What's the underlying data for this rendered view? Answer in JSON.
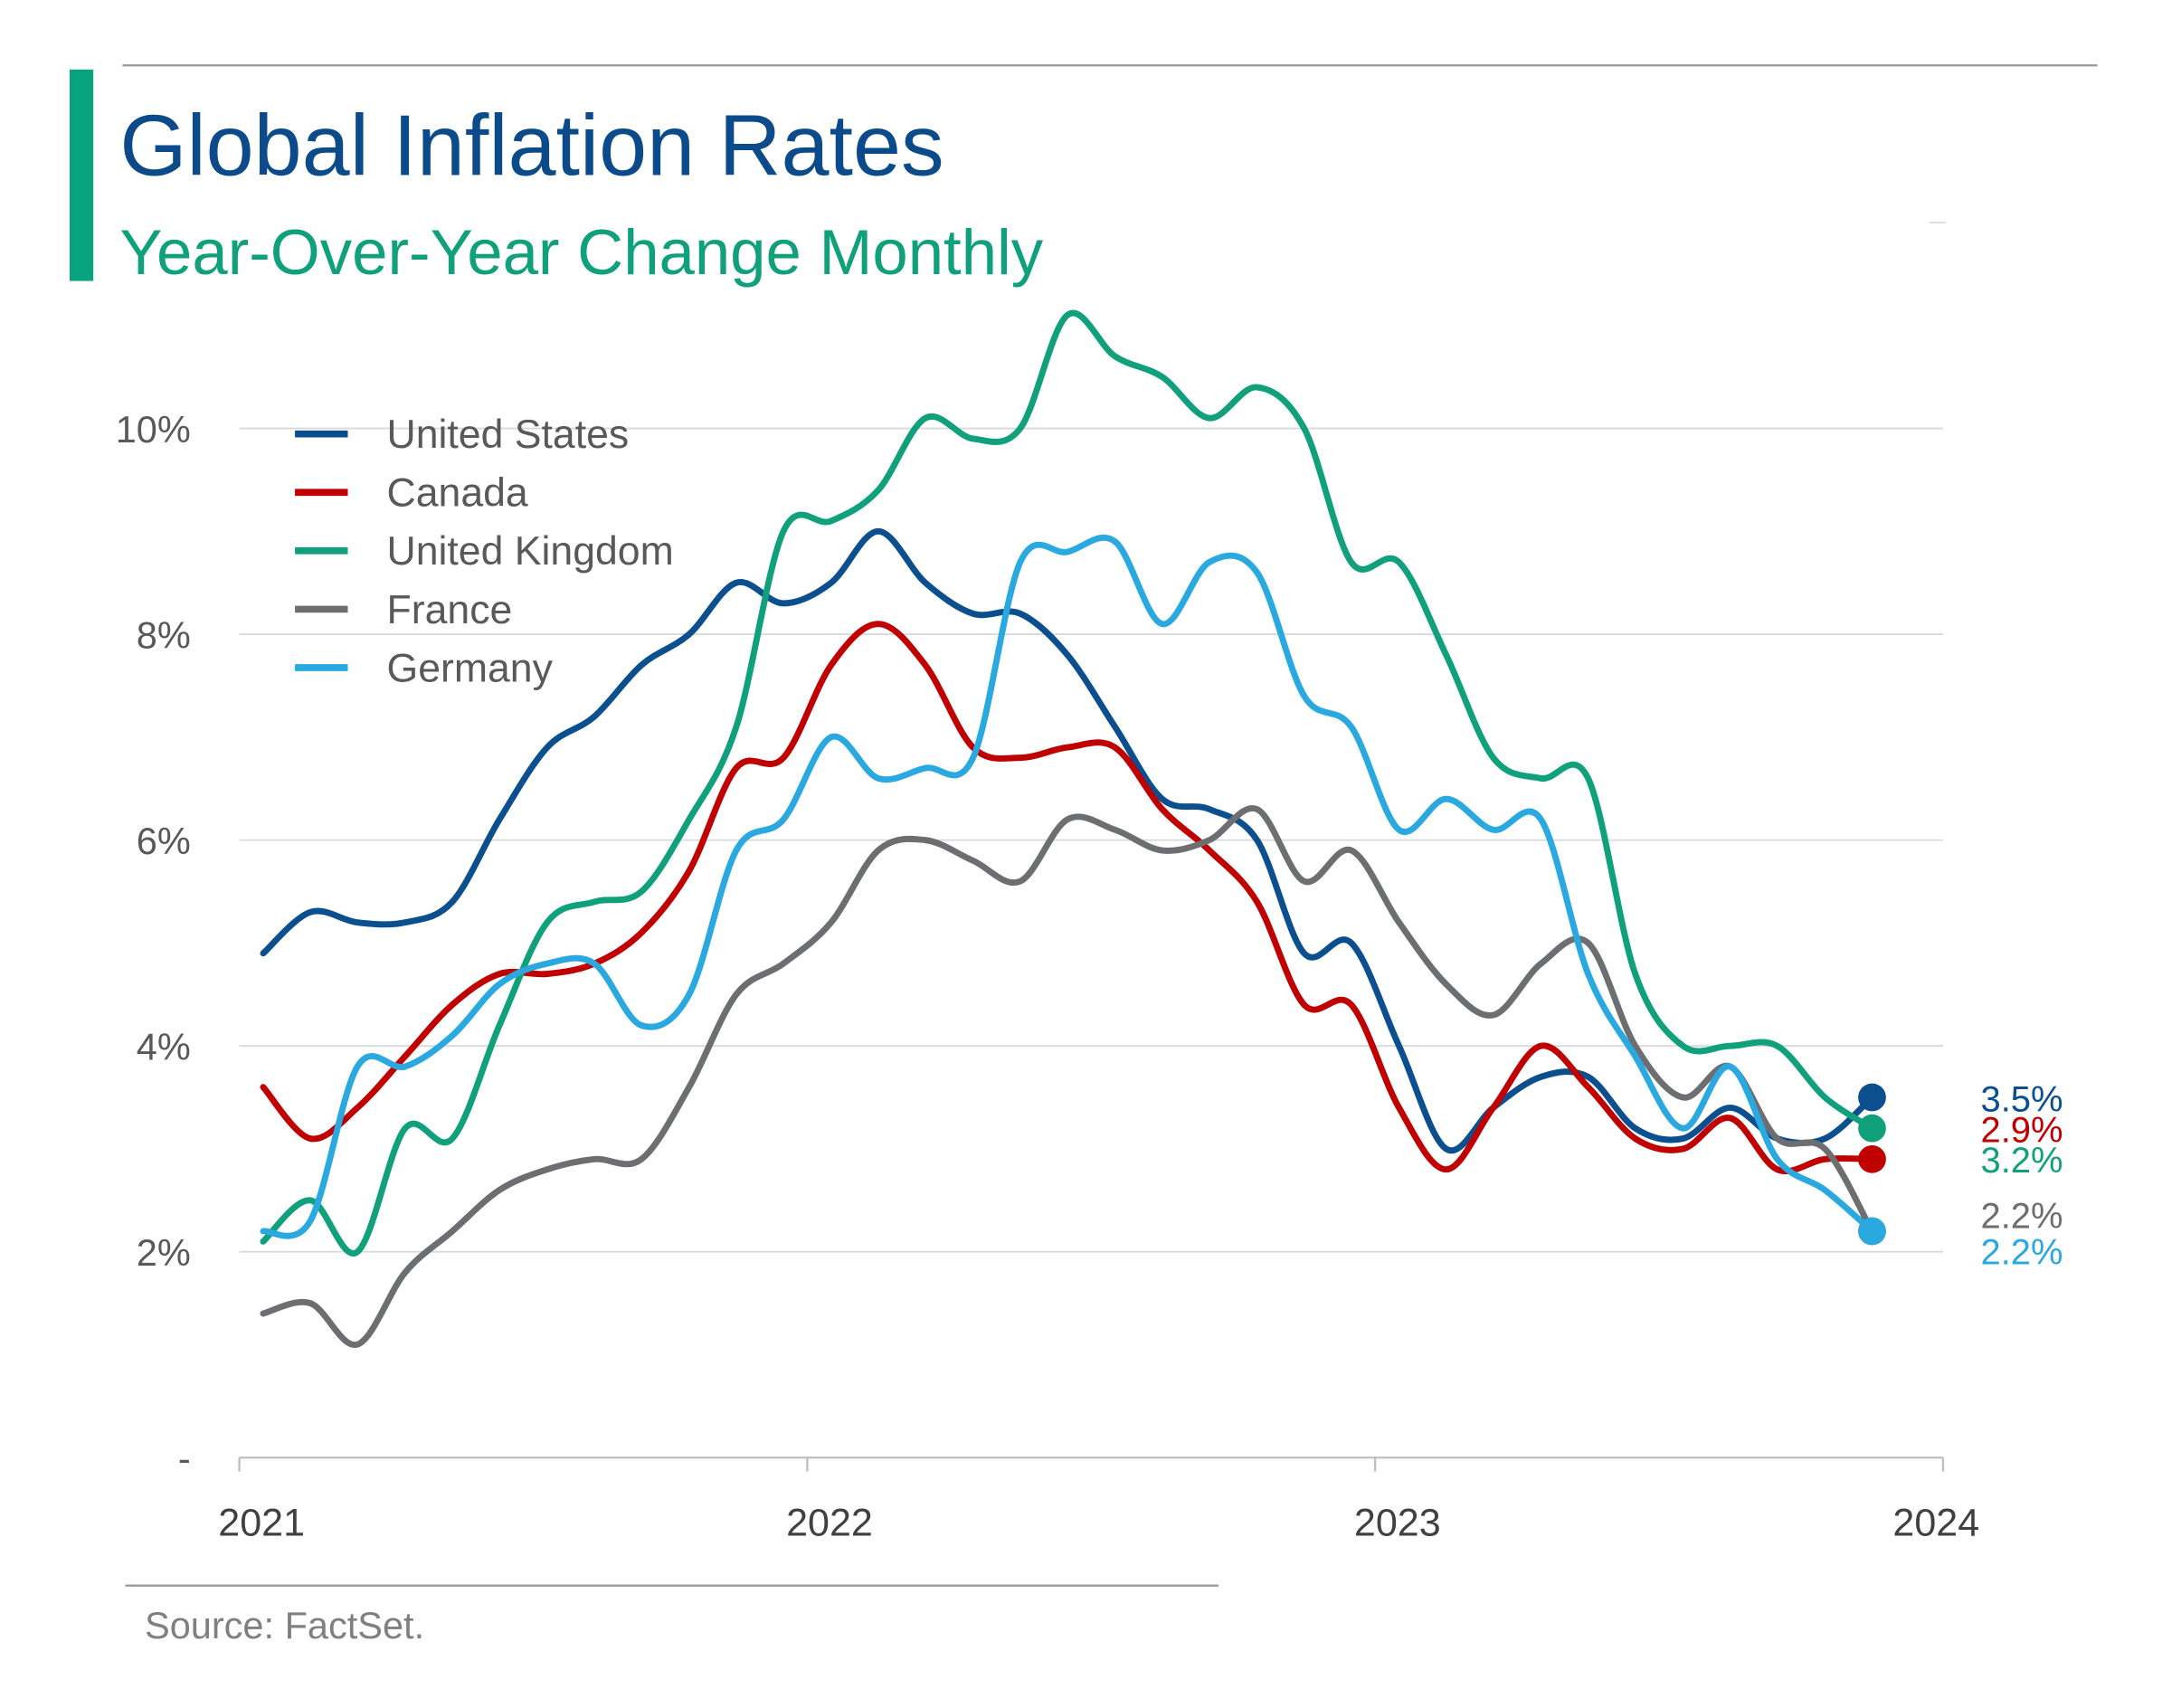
{
  "chart_data": {
    "type": "line",
    "title": "Global Inflation Rates",
    "subtitle": "Year-Over-Year Change Monthly",
    "source": "Source: FactSet.",
    "x": [
      2021.042,
      2021.125,
      2021.208,
      2021.292,
      2021.375,
      2021.458,
      2021.542,
      2021.625,
      2021.708,
      2021.792,
      2021.875,
      2021.958,
      2022.042,
      2022.125,
      2022.208,
      2022.292,
      2022.375,
      2022.458,
      2022.542,
      2022.625,
      2022.708,
      2022.792,
      2022.875,
      2022.958,
      2023.042,
      2023.125,
      2023.208,
      2023.292,
      2023.375,
      2023.458,
      2023.542,
      2023.625,
      2023.708,
      2023.792,
      2023.875
    ],
    "xlim": [
      2021,
      2024
    ],
    "xticks": [
      2021,
      2022,
      2023,
      2024
    ],
    "ylim": [
      0,
      12
    ],
    "yticks": [
      {
        "value": 0,
        "label": "-"
      },
      {
        "value": 2,
        "label": "2%"
      },
      {
        "value": 4,
        "label": "4%"
      },
      {
        "value": 6,
        "label": "6%"
      },
      {
        "value": 8,
        "label": "8%"
      },
      {
        "value": 10,
        "label": "10%"
      }
    ],
    "grid": true,
    "legend": "upper left",
    "series": [
      {
        "name": "United States",
        "color": "#0b4f8f",
        "value_label": "3.5%",
        "values": [
          4.9,
          5.3,
          5.2,
          5.2,
          5.4,
          6.2,
          6.9,
          7.2,
          7.7,
          8.0,
          8.5,
          8.3,
          8.5,
          9.0,
          8.5,
          8.2,
          8.2,
          7.8,
          7.1,
          6.4,
          6.3,
          6.0,
          4.9,
          5.0,
          4.0,
          3.0,
          3.4,
          3.7,
          3.7,
          3.2,
          3.1,
          3.4,
          3.1,
          3.1,
          3.5
        ]
      },
      {
        "name": "Canada",
        "color": "#c00000",
        "value_label": "2.9%",
        "values": [
          3.6,
          3.1,
          3.4,
          3.9,
          4.4,
          4.7,
          4.7,
          4.8,
          5.1,
          5.7,
          6.7,
          6.8,
          7.7,
          8.1,
          7.7,
          6.9,
          6.8,
          6.9,
          6.9,
          6.3,
          5.9,
          5.4,
          4.4,
          4.4,
          3.4,
          2.8,
          3.4,
          4.0,
          3.6,
          3.1,
          3.0,
          3.3,
          2.8,
          2.9,
          2.9
        ]
      },
      {
        "name": "United Kingdom",
        "color": "#10a07c",
        "value_label": "3.2%",
        "values": [
          2.1,
          2.5,
          2.0,
          3.2,
          3.1,
          4.2,
          5.2,
          5.4,
          5.5,
          6.2,
          7.1,
          9.0,
          9.1,
          9.4,
          10.1,
          9.9,
          10.0,
          11.1,
          10.7,
          10.5,
          10.1,
          10.4,
          10.0,
          8.7,
          8.7,
          7.8,
          6.8,
          6.6,
          6.6,
          4.7,
          4.0,
          4.0,
          4.0,
          3.5,
          3.2
        ]
      },
      {
        "name": "France",
        "color": "#6d6e71",
        "value_label": "2.2%",
        "values": [
          1.4,
          1.5,
          1.1,
          1.8,
          2.2,
          2.6,
          2.8,
          2.9,
          2.9,
          3.6,
          4.5,
          4.8,
          5.2,
          5.9,
          6.0,
          5.8,
          5.6,
          6.2,
          6.1,
          5.9,
          6.0,
          6.3,
          5.6,
          5.9,
          5.2,
          4.6,
          4.3,
          4.8,
          5.0,
          4.0,
          3.5,
          3.8,
          3.1,
          3.0,
          2.2
        ]
      },
      {
        "name": "Germany",
        "color": "#2aa8e0",
        "value_label": "2.2%",
        "values": [
          2.2,
          2.3,
          3.8,
          3.8,
          4.1,
          4.6,
          4.8,
          4.8,
          4.2,
          4.5,
          5.9,
          6.2,
          7.0,
          6.6,
          6.7,
          6.8,
          8.7,
          8.8,
          8.9,
          8.1,
          8.7,
          8.6,
          7.4,
          7.1,
          6.1,
          6.4,
          6.1,
          6.2,
          4.7,
          3.9,
          3.2,
          3.8,
          2.9,
          2.6,
          2.2
        ]
      }
    ]
  }
}
